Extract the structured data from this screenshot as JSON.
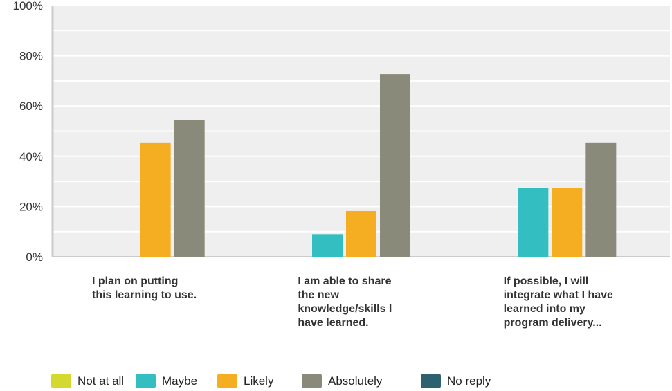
{
  "chart_data": {
    "type": "bar",
    "categories": [
      [
        "I plan on putting",
        "this learning to use."
      ],
      [
        "I am able to share",
        "the new",
        "knowledge/skills I",
        "have learned."
      ],
      [
        "If possible, I will",
        "integrate what I have",
        "learned into my",
        "program delivery..."
      ]
    ],
    "series": [
      {
        "name": "Not at all",
        "color": "#d4d930",
        "values": [
          0,
          0,
          0
        ]
      },
      {
        "name": "Maybe",
        "color": "#33bec1",
        "values": [
          0,
          9,
          27.3
        ]
      },
      {
        "name": "Likely",
        "color": "#f5ae22",
        "values": [
          45.5,
          18.2,
          27.3
        ]
      },
      {
        "name": "Absolutely",
        "color": "#898a79",
        "values": [
          54.5,
          72.7,
          45.5
        ]
      },
      {
        "name": "No reply",
        "color": "#2e6170",
        "values": [
          0,
          0,
          0
        ]
      }
    ],
    "y_ticks": [
      "0%",
      "20%",
      "40%",
      "60%",
      "80%",
      "100%"
    ],
    "ylim": [
      0,
      100
    ],
    "grid": true,
    "legend": "bottom-left",
    "plot_background": "#efefef"
  }
}
